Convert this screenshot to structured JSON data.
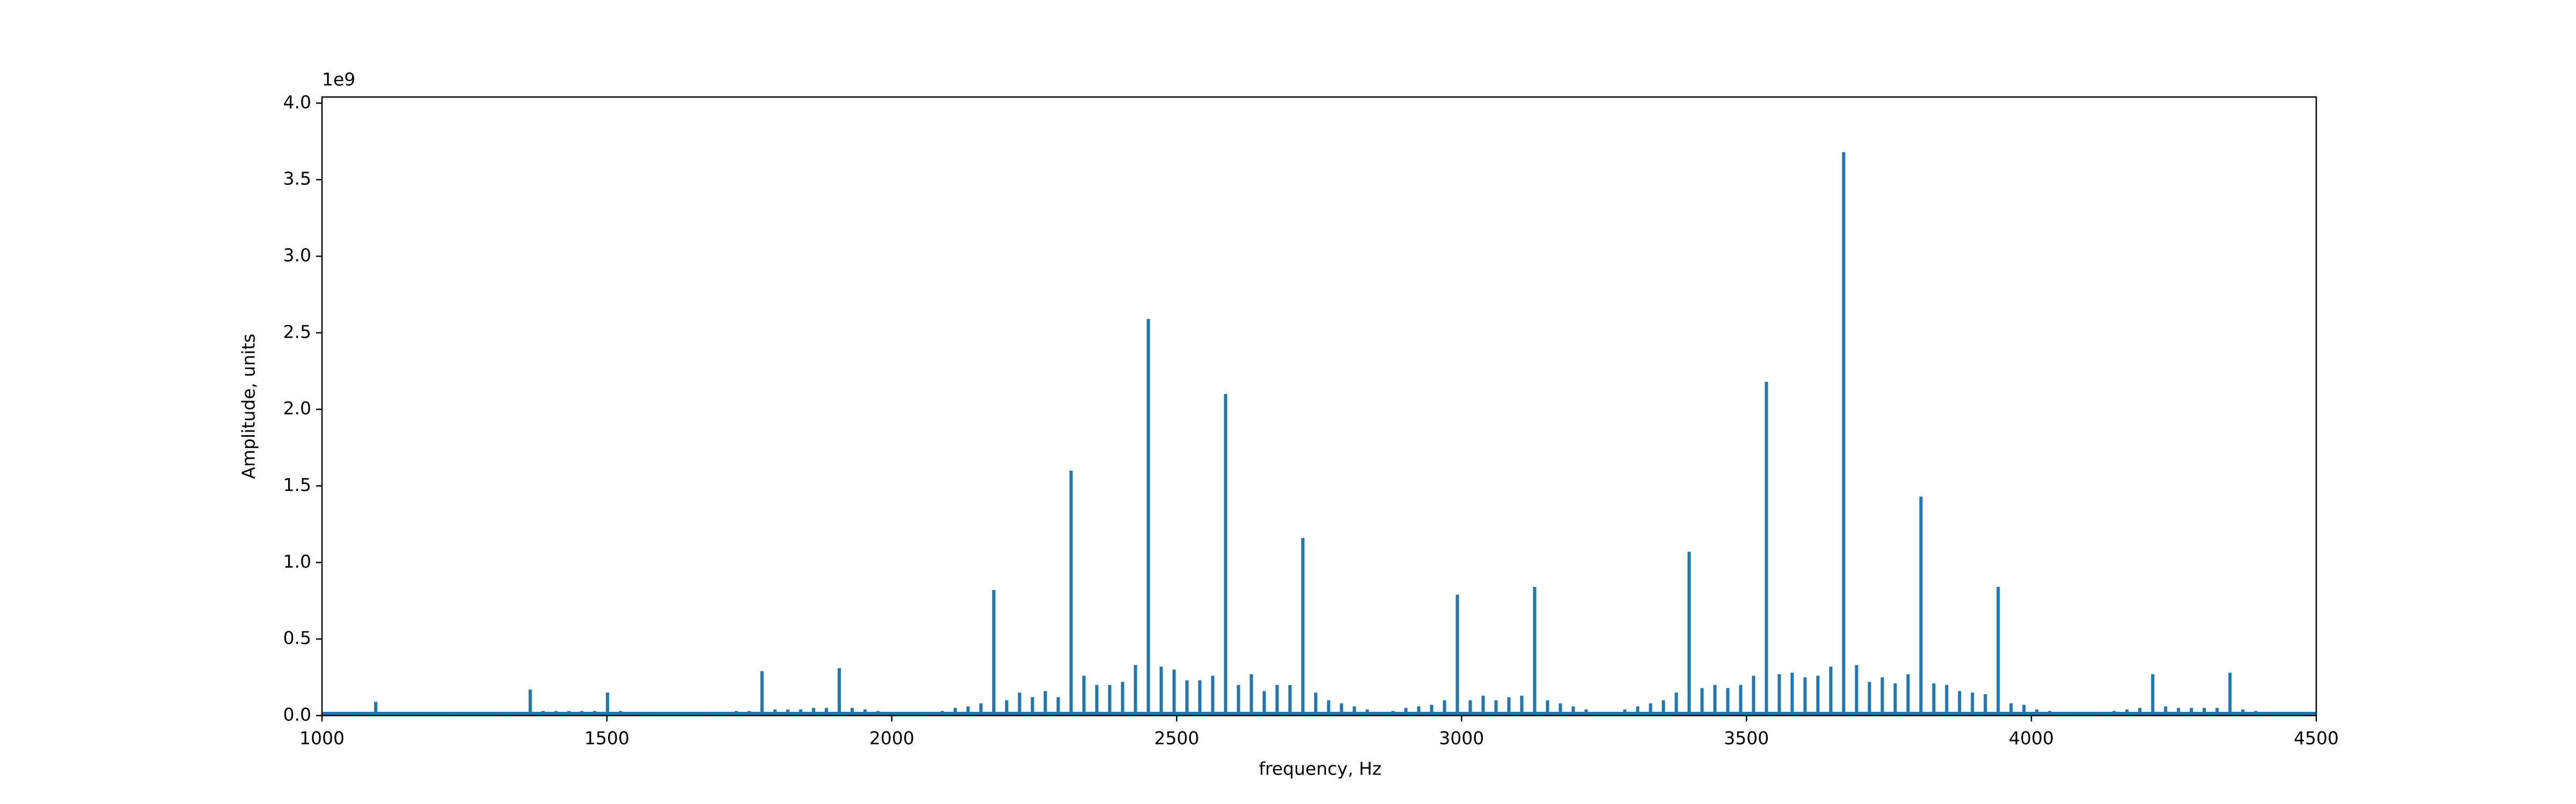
{
  "chart_data": {
    "type": "stem",
    "xlabel": "frequency, Hz",
    "ylabel": "Amplitude, units",
    "y_offset_label": "1e9",
    "color": "#1f77b4",
    "xlim": [
      1000,
      4500
    ],
    "ylim": [
      0,
      4.04
    ],
    "xticks": [
      1000,
      1500,
      2000,
      2500,
      3000,
      3500,
      4000,
      4500
    ],
    "yticks": [
      {
        "value": 0,
        "label": "0.0"
      },
      0.5,
      {
        "value": 1,
        "label": "1.0"
      },
      1.5,
      {
        "value": 2,
        "label": "2.0"
      },
      2.5,
      {
        "value": 3,
        "label": "3.0"
      },
      3.5,
      {
        "value": 4,
        "label": "4.0"
      }
    ],
    "x": [
      1003.8,
      1026.4,
      1049,
      1071.6,
      1094.2,
      1116.8,
      1139.4,
      1162,
      1184.6,
      1207.2,
      1229.8,
      1252.4,
      1275,
      1297.6,
      1320.2,
      1342.8,
      1365.4,
      1388,
      1410.6,
      1433.2,
      1455.8,
      1478.4,
      1501,
      1523.6,
      1546.2,
      1568.8,
      1591.4,
      1614,
      1636.6,
      1659.2,
      1681.8,
      1704.4,
      1727,
      1749.6,
      1772.2,
      1794.8,
      1817.4,
      1840,
      1862.6,
      1885.2,
      1907.8,
      1930.4,
      1953,
      1975.6,
      1998.2,
      2020.8,
      2043.4,
      2066,
      2088.6,
      2111.2,
      2133.8,
      2156.4,
      2179,
      2201.6,
      2224.2,
      2246.8,
      2269.4,
      2292,
      2314.6,
      2337.2,
      2359.8,
      2382.4,
      2405,
      2427.6,
      2450.2,
      2472.8,
      2495.4,
      2518,
      2540.6,
      2563.2,
      2585.8,
      2608.4,
      2631,
      2653.6,
      2676.2,
      2698.8,
      2721.4,
      2744,
      2766.6,
      2789.2,
      2811.8,
      2834.4,
      2857,
      2879.6,
      2902.2,
      2924.8,
      2947.4,
      2970,
      2992.6,
      3015.2,
      3037.8,
      3060.4,
      3083,
      3105.6,
      3128.2,
      3150.8,
      3173.4,
      3196,
      3218.6,
      3241.2,
      3263.8,
      3286.4,
      3309,
      3331.6,
      3354.2,
      3376.8,
      3399.4,
      3422,
      3444.6,
      3467.2,
      3489.8,
      3512.4,
      3535,
      3557.6,
      3580.2,
      3602.8,
      3625.4,
      3648,
      3670.6,
      3693.2,
      3715.8,
      3738.4,
      3761,
      3783.6,
      3806.2,
      3828.8,
      3851.4,
      3874,
      3896.6,
      3919.2,
      3941.8,
      3964.4,
      3987,
      4009.6,
      4032.2,
      4054.8,
      4077.4,
      4100,
      4122.6,
      4145.2,
      4167.8,
      4190.4,
      4213,
      4235.6,
      4258.2,
      4280.8,
      4303.4,
      4326,
      4348.6,
      4371.2,
      4393.8,
      4416.4,
      4439,
      4461.6,
      4484.2
    ],
    "values": [
      0.02,
      0.02,
      0.02,
      0.02,
      0.09,
      0.02,
      0.01,
      0.01,
      0.01,
      0.01,
      0.005,
      0.01,
      0.01,
      0.01,
      0.02,
      0.02,
      0.17,
      0.03,
      0.03,
      0.03,
      0.03,
      0.03,
      0.15,
      0.03,
      0.02,
      0.01,
      0.01,
      0.005,
      0.01,
      0.01,
      0.02,
      0.02,
      0.03,
      0.03,
      0.29,
      0.04,
      0.04,
      0.04,
      0.05,
      0.05,
      0.31,
      0.05,
      0.04,
      0.03,
      0.02,
      0.01,
      0.01,
      0.02,
      0.03,
      0.05,
      0.06,
      0.08,
      0.82,
      0.1,
      0.15,
      0.12,
      0.16,
      0.12,
      1.6,
      0.26,
      0.2,
      0.2,
      0.22,
      0.33,
      2.59,
      0.32,
      0.3,
      0.23,
      0.23,
      0.26,
      2.1,
      0.2,
      0.27,
      0.16,
      0.2,
      0.2,
      1.16,
      0.15,
      0.1,
      0.08,
      0.06,
      0.04,
      0.02,
      0.03,
      0.05,
      0.06,
      0.07,
      0.1,
      0.79,
      0.1,
      0.13,
      0.1,
      0.12,
      0.13,
      0.84,
      0.1,
      0.08,
      0.06,
      0.04,
      0.02,
      0.02,
      0.04,
      0.06,
      0.08,
      0.1,
      0.15,
      1.07,
      0.18,
      0.2,
      0.18,
      0.2,
      0.26,
      2.18,
      0.27,
      0.28,
      0.25,
      0.26,
      0.32,
      3.68,
      0.33,
      0.22,
      0.25,
      0.21,
      0.27,
      1.43,
      0.21,
      0.2,
      0.16,
      0.15,
      0.14,
      0.84,
      0.08,
      0.07,
      0.04,
      0.03,
      0.02,
      0.01,
      0.01,
      0.02,
      0.03,
      0.04,
      0.05,
      0.27,
      0.06,
      0.05,
      0.05,
      0.05,
      0.05,
      0.28,
      0.04,
      0.03,
      0.02,
      0.01,
      0.01,
      0.01
    ]
  }
}
